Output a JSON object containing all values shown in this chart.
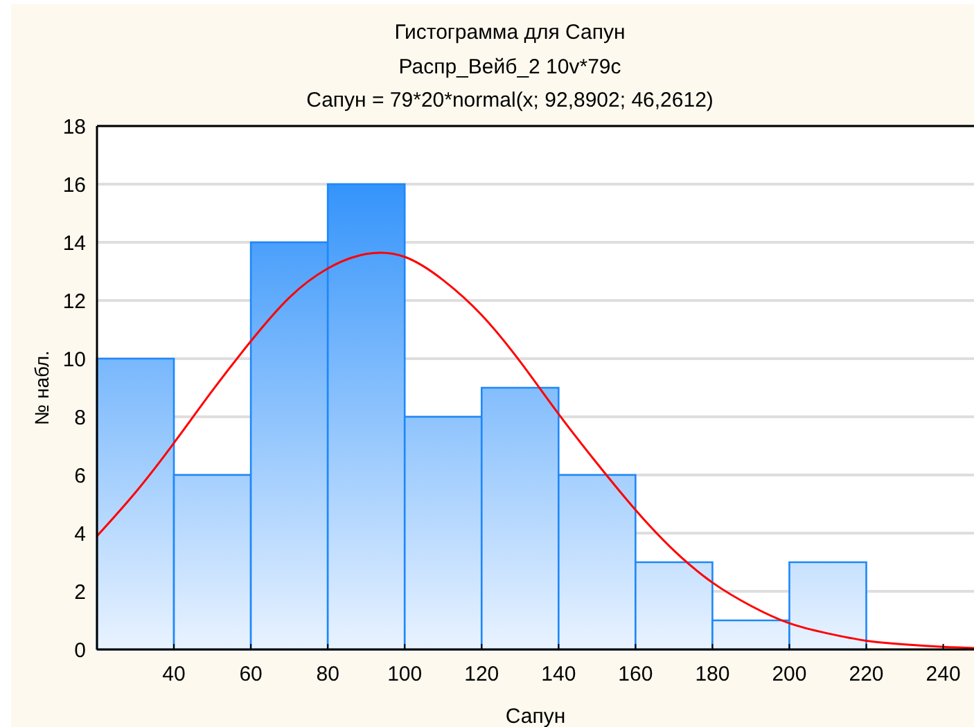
{
  "chart_data": {
    "type": "histogram",
    "title": "Гистограмма для Сапун",
    "subtitle": "Распр_Вейб_2 10v*79c",
    "annotations": [
      "Сапун = 79*20*normal(x; 92,8902; 46,2612)"
    ],
    "xlabel": "Сапун",
    "ylabel": "№ набл.",
    "bins": [
      20,
      40,
      60,
      80,
      100,
      120,
      140,
      160,
      180,
      200,
      220
    ],
    "series": [
      {
        "color": "#1e88fa",
        "values": [
          10,
          6,
          14,
          16,
          8,
          9,
          6,
          3,
          1,
          3
        ]
      },
      {
        "type": "line",
        "color": "#ff0000",
        "x": [
          20,
          30,
          40,
          50,
          60,
          70,
          80,
          90,
          100,
          110,
          120,
          130,
          140,
          150,
          160,
          170,
          180,
          190,
          200,
          210,
          220,
          230,
          240,
          248
        ],
        "values": [
          3.9,
          5.4,
          7.1,
          8.9,
          10.6,
          12.1,
          13.1,
          13.6,
          13.5,
          12.7,
          11.5,
          9.9,
          8.1,
          6.4,
          4.8,
          3.4,
          2.3,
          1.5,
          0.9,
          0.55,
          0.3,
          0.17,
          0.09,
          0.05
        ]
      }
    ],
    "xlim": [
      20,
      248
    ],
    "xticks": [
      40,
      60,
      80,
      100,
      120,
      140,
      160,
      180,
      200,
      220,
      240
    ],
    "ylim": [
      0,
      18
    ],
    "yticks": [
      0,
      2,
      4,
      6,
      8,
      10,
      12,
      14,
      16,
      18
    ],
    "grid": "y"
  }
}
